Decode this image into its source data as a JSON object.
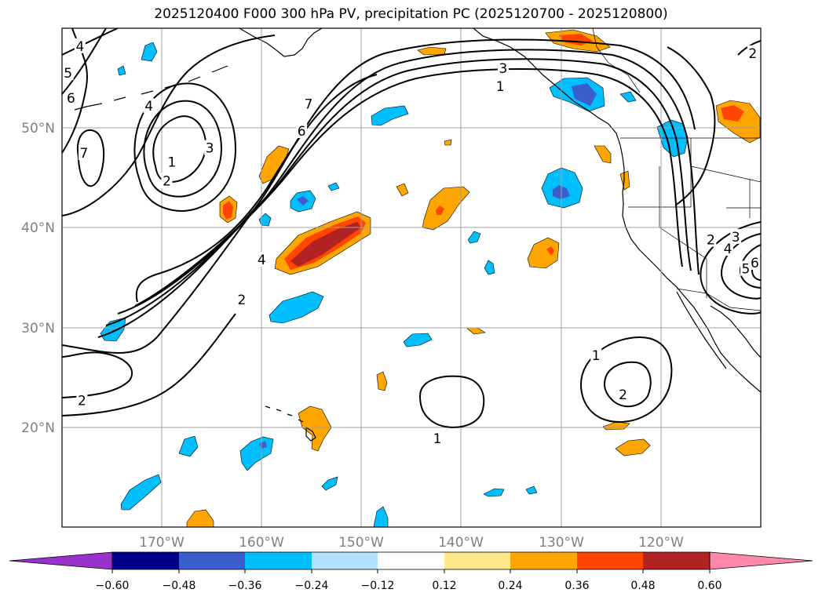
{
  "title": "2025120400 F000 300 hPa PV, precipitation PC (2025120700 - 2025120800)",
  "map": {
    "lon_range": [
      -180,
      -110
    ],
    "lat_range": [
      10,
      60
    ],
    "lon_ticks": [
      {
        "value": -170,
        "label": "170°W"
      },
      {
        "value": -160,
        "label": "160°W"
      },
      {
        "value": -150,
        "label": "150°W"
      },
      {
        "value": -140,
        "label": "140°W"
      },
      {
        "value": -130,
        "label": "130°W"
      },
      {
        "value": -120,
        "label": "120°W"
      }
    ],
    "lat_ticks": [
      {
        "value": 50,
        "label": "50°N"
      },
      {
        "value": 40,
        "label": "40°N"
      },
      {
        "value": 30,
        "label": "30°N"
      },
      {
        "value": 20,
        "label": "20°N"
      }
    ],
    "contour_labels": [
      {
        "text": "4",
        "lon": -178.2,
        "lat": 58.2
      },
      {
        "text": "5",
        "lon": -179.4,
        "lat": 55.5
      },
      {
        "text": "6",
        "lon": -179.1,
        "lat": 53.0
      },
      {
        "text": "4",
        "lon": -171.3,
        "lat": 52.2
      },
      {
        "text": "7",
        "lon": -177.8,
        "lat": 47.5
      },
      {
        "text": "1",
        "lon": -169.0,
        "lat": 46.6
      },
      {
        "text": "3",
        "lon": -165.2,
        "lat": 48.0
      },
      {
        "text": "2",
        "lon": -169.5,
        "lat": 44.7
      },
      {
        "text": "7",
        "lon": -155.3,
        "lat": 52.4
      },
      {
        "text": "6",
        "lon": -156.0,
        "lat": 49.7
      },
      {
        "text": "3",
        "lon": -135.8,
        "lat": 56.0
      },
      {
        "text": "1",
        "lon": -136.1,
        "lat": 54.2
      },
      {
        "text": "4",
        "lon": -160.0,
        "lat": 36.8
      },
      {
        "text": "2",
        "lon": -162.0,
        "lat": 32.8
      },
      {
        "text": "2",
        "lon": -178.0,
        "lat": 22.7
      },
      {
        "text": "1",
        "lon": -142.4,
        "lat": 18.9
      },
      {
        "text": "1",
        "lon": -126.5,
        "lat": 27.2
      },
      {
        "text": "2",
        "lon": -123.8,
        "lat": 23.3
      },
      {
        "text": "2",
        "lon": -110.8,
        "lat": 57.5
      },
      {
        "text": "2",
        "lon": -115.0,
        "lat": 38.8
      },
      {
        "text": "3",
        "lon": -112.5,
        "lat": 39.1
      },
      {
        "text": "4",
        "lon": -113.3,
        "lat": 37.9
      },
      {
        "text": "5",
        "lon": -111.5,
        "lat": 35.9
      },
      {
        "text": "6",
        "lon": -110.6,
        "lat": 36.5
      }
    ]
  },
  "colorbar": {
    "levels": [
      -0.6,
      -0.48,
      -0.36,
      -0.24,
      -0.12,
      0.12,
      0.24,
      0.36,
      0.48,
      0.6
    ],
    "tick_labels": [
      "−0.60",
      "−0.48",
      "−0.36",
      "−0.24",
      "−0.12",
      "0.12",
      "0.24",
      "0.36",
      "0.48",
      "0.60"
    ],
    "colors": [
      "#9932cc",
      "#00008b",
      "#3a5fcd",
      "#00bfff",
      "#b0e2ff",
      "#ffffff",
      "#ffe88c",
      "#ffa500",
      "#ff4500",
      "#b22222",
      "#ff88aa"
    ]
  }
}
